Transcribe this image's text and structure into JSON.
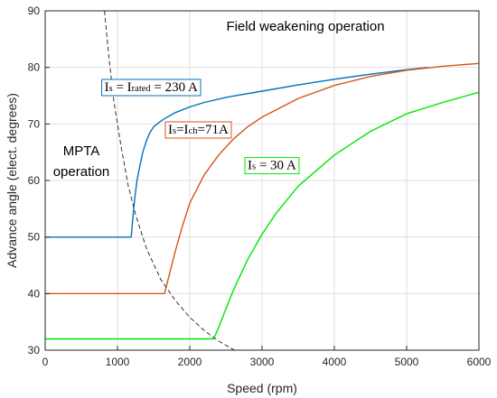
{
  "chart_data": {
    "type": "line",
    "title": "",
    "xlabel": "Speed  (rpm)",
    "ylabel": "Advance angle (elect. degrees)",
    "xlim": [
      0,
      6000
    ],
    "ylim": [
      30,
      90
    ],
    "xticks": [
      0,
      1000,
      2000,
      3000,
      4000,
      5000,
      6000
    ],
    "yticks": [
      30,
      40,
      50,
      60,
      70,
      80,
      90
    ],
    "grid": true,
    "annotations": [
      {
        "text": "Field weakening operation",
        "x": 3600,
        "y": 86.5
      },
      {
        "text": "MPTA",
        "x": 500,
        "y": 64.5
      },
      {
        "text": "operation",
        "x": 500,
        "y": 60.8
      }
    ],
    "series": [
      {
        "name": "Is = Irated = 230 A",
        "color": "#0072BD",
        "label_parts": [
          {
            "text": "I",
            "size": "main"
          },
          {
            "text": "s",
            "size": "sub"
          },
          {
            "text": " = I",
            "size": "main"
          },
          {
            "text": "rated",
            "size": "sub"
          },
          {
            "text": " = 230 A",
            "size": "main"
          }
        ],
        "label_anchor": [
          820,
          75.8
        ],
        "label_border": "#0072BD",
        "x": [
          0,
          1190,
          1210,
          1240,
          1270,
          1300,
          1350,
          1400,
          1450,
          1500,
          1600,
          1700,
          1800,
          2000,
          2200,
          2500,
          3000,
          3500,
          4000,
          4500,
          5000,
          5300
        ],
        "y": [
          50,
          50,
          53,
          57,
          60,
          62,
          65,
          67,
          68.5,
          69.5,
          70.5,
          71.3,
          72,
          73,
          73.8,
          74.7,
          75.8,
          76.9,
          77.9,
          78.8,
          79.6,
          80
        ]
      },
      {
        "name": "Is=Ich=71A",
        "color": "#D95319",
        "label_parts": [
          {
            "text": "I",
            "size": "main"
          },
          {
            "text": "s",
            "size": "sub"
          },
          {
            "text": "=I",
            "size": "main"
          },
          {
            "text": "ch",
            "size": "sub"
          },
          {
            "text": "=71A",
            "size": "main"
          }
        ],
        "label_anchor": [
          1700,
          68.3
        ],
        "label_border": "#D95319",
        "x": [
          0,
          1650,
          1700,
          1800,
          1900,
          2000,
          2200,
          2400,
          2600,
          2800,
          3000,
          3500,
          4000,
          4500,
          5000,
          5500,
          6000
        ],
        "y": [
          40,
          40,
          42.5,
          47.5,
          52,
          56,
          61,
          64.5,
          67.3,
          69.5,
          71.2,
          74.5,
          76.8,
          78.4,
          79.5,
          80.2,
          80.7
        ]
      },
      {
        "name": "Is = 30 A",
        "color": "#00E600",
        "label_parts": [
          {
            "text": "I",
            "size": "main"
          },
          {
            "text": "s",
            "size": "sub"
          },
          {
            "text": " = 30 A",
            "size": "main"
          }
        ],
        "label_anchor": [
          2800,
          62
        ],
        "label_border": "#00E600",
        "x": [
          0,
          2330,
          2400,
          2500,
          2600,
          2800,
          3000,
          3200,
          3500,
          4000,
          4500,
          5000,
          5500,
          6000
        ],
        "y": [
          32,
          32,
          34,
          37.3,
          40.5,
          46,
          50.5,
          54.3,
          59,
          64.5,
          68.7,
          71.8,
          73.8,
          75.6
        ]
      },
      {
        "name": "MPTA boundary",
        "color": "#333333",
        "dashed": true,
        "x": [
          820,
          880,
          950,
          1050,
          1150,
          1250,
          1400,
          1600,
          1800,
          2000,
          2200,
          2400,
          2620
        ],
        "y": [
          90,
          82,
          74,
          66,
          59,
          54,
          48,
          42.5,
          38.8,
          35.8,
          33.5,
          31.6,
          30
        ]
      }
    ]
  }
}
